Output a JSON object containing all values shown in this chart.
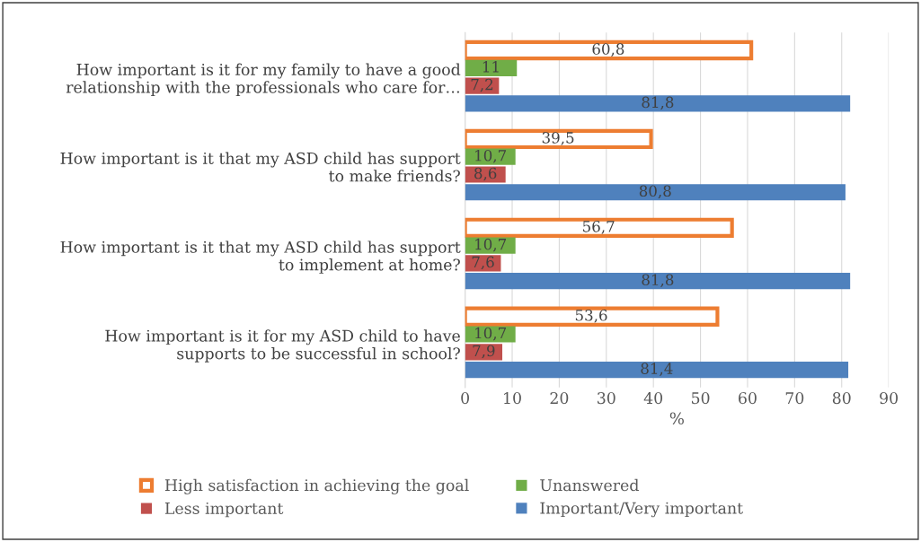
{
  "chart_data": {
    "type": "bar",
    "orientation": "horizontal",
    "xlabel": "%",
    "categories": [
      "How important is it for my family to have a good\nrelationship with the professionals who care for…",
      "How important is it that my ASD child has support\nto make friends?",
      "How important is it that my ASD child has support\nto implement at home?",
      "How important is it for my ASD child to have\nsupports to be successful in school?"
    ],
    "series": [
      {
        "name": "High satisfaction in achieving the goal",
        "color": "#ed7d31",
        "values": [
          60.8,
          39.5,
          56.7,
          53.6
        ],
        "value_labels": [
          "60,8",
          "39,5",
          "56,7",
          "53,6"
        ]
      },
      {
        "name": "Unanswered",
        "color": "#70ad47",
        "values": [
          11,
          10.7,
          10.7,
          10.7
        ],
        "value_labels": [
          "11",
          "10,7",
          "10,7",
          "10,7"
        ]
      },
      {
        "name": "Less important",
        "color": "#c0504d",
        "values": [
          7.2,
          8.6,
          7.6,
          7.9
        ],
        "value_labels": [
          "7,2",
          "8,6",
          "7,6",
          "7,9"
        ]
      },
      {
        "name": "Important/Very important",
        "color": "#4f81bd",
        "values": [
          81.8,
          80.8,
          81.8,
          81.4
        ],
        "value_labels": [
          "81,8",
          "80,8",
          "81,8",
          "81,4"
        ]
      }
    ],
    "xlim": [
      0,
      90
    ],
    "xticks": [
      0,
      10,
      20,
      30,
      40,
      50,
      60,
      70,
      80,
      90
    ],
    "grid": "x",
    "legend": "bottom"
  }
}
